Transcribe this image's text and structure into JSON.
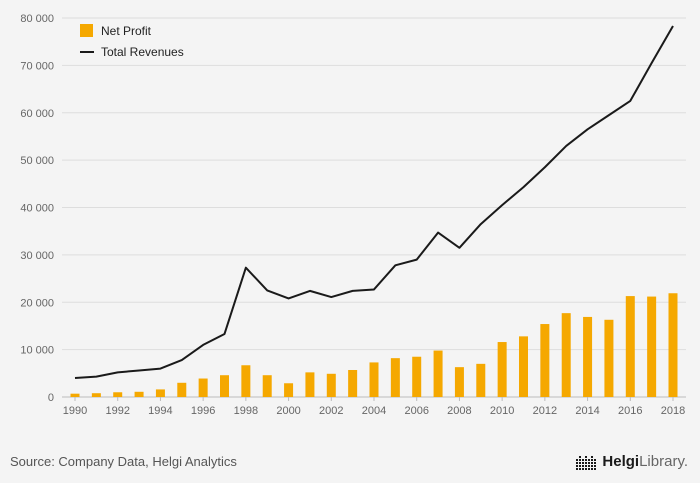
{
  "chart_data": {
    "type": "bar",
    "title": "",
    "xlabel": "",
    "ylabel": "",
    "ylim": [
      0,
      80000
    ],
    "ytick_step": 10000,
    "y_tick_labels": [
      "0",
      "10 000",
      "20 000",
      "30 000",
      "40 000",
      "50 000",
      "60 000",
      "70 000",
      "80 000"
    ],
    "grid": true,
    "legend_position": "top-left",
    "categories": [
      1990,
      1991,
      1992,
      1993,
      1994,
      1995,
      1996,
      1997,
      1998,
      1999,
      2000,
      2001,
      2002,
      2003,
      2004,
      2005,
      2006,
      2007,
      2008,
      2009,
      2010,
      2011,
      2012,
      2013,
      2014,
      2015,
      2016,
      2017,
      2018
    ],
    "x_tick_labels": [
      "1990",
      "1992",
      "1994",
      "1996",
      "1998",
      "2000",
      "2002",
      "2004",
      "2006",
      "2008",
      "2010",
      "2012",
      "2014",
      "2016",
      "2018"
    ],
    "series": [
      {
        "name": "Net Profit",
        "type": "bar",
        "color": "#F5A800",
        "values": [
          700,
          800,
          1000,
          1100,
          1600,
          3000,
          3900,
          4600,
          6700,
          4600,
          2900,
          5200,
          4900,
          5700,
          7300,
          8200,
          8500,
          9800,
          6300,
          7000,
          11600,
          12800,
          15400,
          17700,
          16900,
          16300,
          21300,
          21200,
          21900
        ]
      },
      {
        "name": "Total Revenues",
        "type": "line",
        "color": "#1a1a1a",
        "values": [
          4000,
          4300,
          5200,
          5600,
          6000,
          7800,
          11000,
          13300,
          27300,
          22500,
          20800,
          22400,
          21100,
          22400,
          22700,
          27800,
          29000,
          34700,
          31500,
          36500,
          40500,
          44300,
          48500,
          53000,
          56500,
          59500,
          62500,
          70500,
          78300
        ]
      }
    ]
  },
  "legend": {
    "net_profit": "Net Profit",
    "total_revenues": "Total Revenues"
  },
  "footer": {
    "source": "Source: Company Data, Helgi Analytics",
    "logo_helgi": "Helgi",
    "logo_library": "Library."
  },
  "colors": {
    "bar": "#F5A800",
    "line": "#1a1a1a",
    "grid": "#dddddd",
    "axis": "#bbbbbb",
    "background": "#f4f4f4"
  }
}
